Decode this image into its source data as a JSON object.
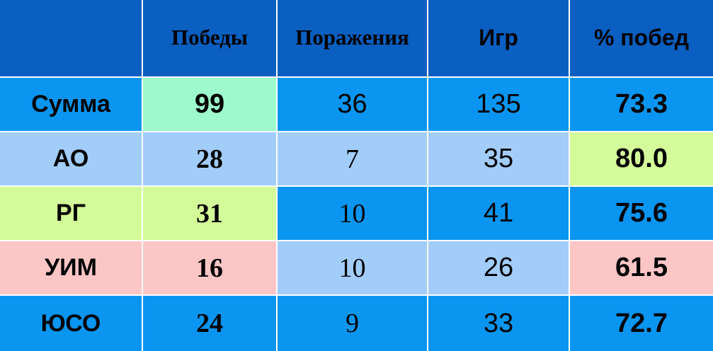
{
  "colors": {
    "header": "#0a5fc0",
    "blue": "#0a95f0",
    "light_blue": "#a2cdfa",
    "mint": "#9ef9cc",
    "lime": "#d4fb99",
    "pink": "#fdc6c6"
  },
  "table": {
    "headers": [
      "",
      "Победы",
      "Поражения",
      "Игр",
      "% побед"
    ],
    "rows": [
      {
        "label": "Сумма",
        "wins": "99",
        "losses": "36",
        "games": "135",
        "pct": "73.3"
      },
      {
        "label": "АО",
        "wins": "28",
        "losses": "7",
        "games": "35",
        "pct": "80.0"
      },
      {
        "label": "РГ",
        "wins": "31",
        "losses": "10",
        "games": "41",
        "pct": "75.6"
      },
      {
        "label": "УИМ",
        "wins": "16",
        "losses": "10",
        "games": "26",
        "pct": "61.5"
      },
      {
        "label": "ЮСО",
        "wins": "24",
        "losses": "9",
        "games": "33",
        "pct": "72.7"
      }
    ]
  }
}
